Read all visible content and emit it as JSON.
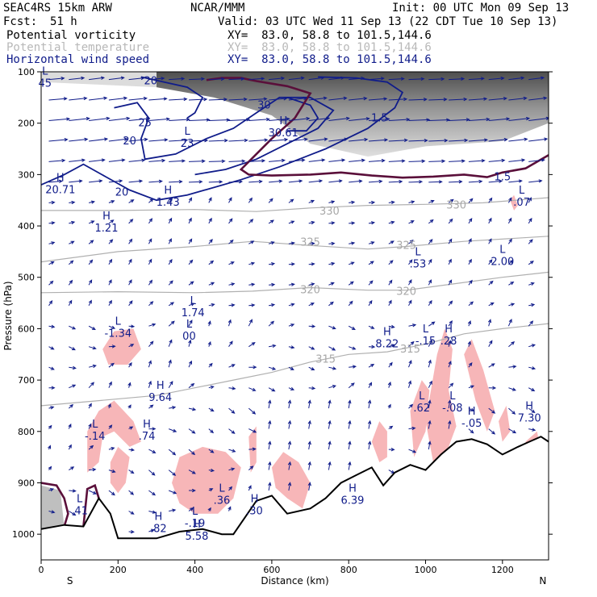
{
  "header": {
    "model": "SEAC4RS 15km ARW",
    "org": "NCAR/MMM",
    "init": "Init: 00 UTC Mon 09 Sep 13",
    "fcst_label": "Fcst:",
    "fcst_value": "51 h",
    "valid": "Valid: 03 UTC Wed 11 Sep 13 (22 CDT Tue 10 Sep 13)",
    "fields": [
      {
        "name": "Potential vorticity",
        "xy": "XY=  83.0, 58.8 to 101.5,144.6",
        "color": "#000000"
      },
      {
        "name": "Potential temperature",
        "xy": "XY=  83.0, 58.8 to 101.5,144.6",
        "color": "#b8b8b8"
      },
      {
        "name": "Horizontal wind speed",
        "xy": "XY=  83.0, 58.8 to 101.5,144.6",
        "color": "#101c8a"
      }
    ]
  },
  "colors": {
    "wind": "#101c8a",
    "pv_contour": "#5a0f3a",
    "theta": "#b0b0b0",
    "pv_fill": "#f7b6b8",
    "terrain": "#000000"
  },
  "chart_data": {
    "type": "cross-section",
    "xlabel": "Distance (km)",
    "ylabel": "Pressure (hPa)",
    "xlim": [
      0,
      1320
    ],
    "ylim": [
      1050,
      100
    ],
    "x_ticks": [
      0,
      200,
      400,
      600,
      800,
      1000,
      1200
    ],
    "y_ticks": [
      100,
      200,
      300,
      400,
      500,
      600,
      700,
      800,
      900,
      1000
    ],
    "x_end_labels": [
      "S",
      "N"
    ],
    "terrain_surface": [
      [
        0,
        990
      ],
      [
        60,
        982
      ],
      [
        110,
        985
      ],
      [
        150,
        930
      ],
      [
        180,
        960
      ],
      [
        200,
        1008
      ],
      [
        260,
        1008
      ],
      [
        300,
        1008
      ],
      [
        360,
        995
      ],
      [
        420,
        990
      ],
      [
        470,
        1000
      ],
      [
        500,
        1000
      ],
      [
        560,
        935
      ],
      [
        600,
        925
      ],
      [
        640,
        960
      ],
      [
        700,
        950
      ],
      [
        740,
        930
      ],
      [
        780,
        900
      ],
      [
        820,
        885
      ],
      [
        860,
        870
      ],
      [
        890,
        905
      ],
      [
        920,
        880
      ],
      [
        960,
        865
      ],
      [
        1000,
        875
      ],
      [
        1040,
        845
      ],
      [
        1080,
        820
      ],
      [
        1120,
        815
      ],
      [
        1160,
        825
      ],
      [
        1200,
        845
      ],
      [
        1240,
        830
      ],
      [
        1270,
        820
      ],
      [
        1300,
        810
      ],
      [
        1320,
        820
      ]
    ],
    "pv_1_5_pvu_line": [
      [
        430,
        116
      ],
      [
        470,
        112
      ],
      [
        520,
        112
      ],
      [
        560,
        118
      ],
      [
        640,
        128
      ],
      [
        700,
        142
      ],
      [
        660,
        190
      ],
      [
        600,
        230
      ],
      [
        520,
        290
      ],
      [
        540,
        300
      ],
      [
        600,
        302
      ],
      [
        700,
        300
      ],
      [
        780,
        296
      ],
      [
        860,
        302
      ],
      [
        940,
        306
      ],
      [
        1020,
        304
      ],
      [
        1100,
        300
      ],
      [
        1160,
        305
      ],
      [
        1200,
        296
      ],
      [
        1260,
        288
      ],
      [
        1320,
        262
      ]
    ],
    "theta_contours": [
      {
        "label": "315",
        "points": [
          [
            0,
            750
          ],
          [
            150,
            740
          ],
          [
            300,
            730
          ],
          [
            400,
            715
          ],
          [
            500,
            700
          ],
          [
            600,
            685
          ],
          [
            700,
            665
          ],
          [
            800,
            650
          ],
          [
            900,
            645
          ],
          [
            1000,
            630
          ],
          [
            1100,
            610
          ],
          [
            1200,
            600
          ],
          [
            1320,
            590
          ]
        ]
      },
      {
        "label": "320",
        "points": [
          [
            0,
            530
          ],
          [
            200,
            528
          ],
          [
            400,
            530
          ],
          [
            550,
            527
          ],
          [
            700,
            520
          ],
          [
            850,
            525
          ],
          [
            950,
            525
          ],
          [
            1100,
            510
          ],
          [
            1200,
            500
          ],
          [
            1320,
            490
          ]
        ]
      },
      {
        "label": "325",
        "points": [
          [
            0,
            470
          ],
          [
            200,
            450
          ],
          [
            400,
            440
          ],
          [
            550,
            430
          ],
          [
            700,
            438
          ],
          [
            850,
            445
          ],
          [
            950,
            440
          ],
          [
            1100,
            430
          ],
          [
            1320,
            420
          ]
        ]
      },
      {
        "label": "330",
        "points": [
          [
            0,
            370
          ],
          [
            200,
            370
          ],
          [
            400,
            368
          ],
          [
            560,
            372
          ],
          [
            700,
            365
          ],
          [
            850,
            360
          ],
          [
            1000,
            358
          ],
          [
            1150,
            355
          ],
          [
            1320,
            345
          ]
        ]
      }
    ],
    "isotach_labels": [
      "20",
      "20",
      "25",
      "30",
      "20",
      "1.5",
      "1.5"
    ],
    "extrema": [
      {
        "type": "L",
        "value": "45"
      },
      {
        "type": "H",
        "value": "30.61"
      },
      {
        "type": "L",
        "value": "23"
      },
      {
        "type": "H",
        "value": "20.71"
      },
      {
        "type": "H",
        "value": "1.43"
      },
      {
        "type": "H",
        "value": "1.21"
      },
      {
        "type": "L",
        "value": ".07"
      },
      {
        "type": "L",
        "value": ".53"
      },
      {
        "type": "L",
        "value": "2.00"
      },
      {
        "type": "L",
        "value": "1.74"
      },
      {
        "type": "L",
        "value": "00"
      },
      {
        "type": "L",
        "value": "-1.34"
      },
      {
        "type": "H",
        "value": "8.22"
      },
      {
        "type": "L",
        "value": "-.15"
      },
      {
        "type": "H",
        "value": ".28"
      },
      {
        "type": "H",
        "value": "9.64"
      },
      {
        "type": "L",
        "value": ".62"
      },
      {
        "type": "L",
        "value": "-.08"
      },
      {
        "type": "H",
        "value": "-.05"
      },
      {
        "type": "H",
        "value": "7.30"
      },
      {
        "type": "L",
        "value": "-.14"
      },
      {
        "type": "H",
        "value": ".74"
      },
      {
        "type": "H",
        "value": "6.39"
      },
      {
        "type": "H",
        "value": ".30"
      },
      {
        "type": "L",
        "value": ".36"
      },
      {
        "type": "L",
        "value": "-.19"
      },
      {
        "type": "H",
        "value": ".82"
      },
      {
        "type": "H",
        "value": "5.58"
      },
      {
        "type": "L",
        "value": ".41"
      }
    ],
    "series": [
      {
        "name": "Potential vorticity"
      },
      {
        "name": "Potential temperature"
      },
      {
        "name": "Horizontal wind speed"
      }
    ]
  }
}
